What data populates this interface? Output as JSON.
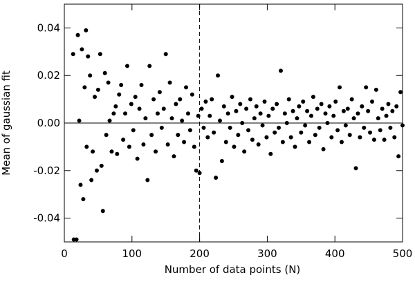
{
  "chart_data": {
    "type": "scatter",
    "x_label": "Number of data points (N)",
    "y_label": "Mean of gaussian fit",
    "xlim": [
      0,
      500
    ],
    "xticks": [
      0,
      100,
      200,
      300,
      400,
      500
    ],
    "ylim": [
      -0.05,
      0.05
    ],
    "yticks": [
      -0.04,
      -0.02,
      {
        "value": 0,
        "label": "0.00"
      },
      0.02,
      0.04
    ],
    "hline": 0,
    "vline": 200,
    "color": "#000000",
    "x": [
      13,
      14,
      18,
      20,
      22,
      24,
      26,
      28,
      30,
      32,
      33,
      35,
      38,
      40,
      42,
      45,
      48,
      50,
      53,
      55,
      57,
      60,
      62,
      65,
      67,
      70,
      73,
      76,
      78,
      81,
      84,
      87,
      90,
      93,
      96,
      99,
      102,
      105,
      108,
      111,
      114,
      117,
      120,
      123,
      126,
      129,
      132,
      135,
      138,
      141,
      144,
      147,
      150,
      153,
      156,
      159,
      162,
      165,
      168,
      171,
      174,
      177,
      180,
      183,
      186,
      189,
      192,
      195,
      198,
      200,
      203,
      206,
      209,
      212,
      215,
      218,
      221,
      224,
      227,
      230,
      233,
      236,
      239,
      242,
      245,
      248,
      251,
      254,
      257,
      260,
      263,
      266,
      269,
      272,
      275,
      278,
      281,
      284,
      287,
      290,
      293,
      296,
      299,
      302,
      305,
      308,
      311,
      314,
      317,
      320,
      323,
      326,
      329,
      332,
      335,
      338,
      341,
      344,
      347,
      350,
      353,
      356,
      359,
      362,
      365,
      368,
      371,
      374,
      377,
      380,
      383,
      386,
      389,
      392,
      395,
      398,
      401,
      404,
      407,
      410,
      413,
      416,
      419,
      422,
      425,
      428,
      431,
      434,
      437,
      440,
      443,
      446,
      449,
      452,
      455,
      458,
      461,
      464,
      467,
      470,
      473,
      476,
      479,
      482,
      485,
      488,
      491,
      494,
      497,
      500
    ],
    "y": [
      0.029,
      -0.049,
      -0.049,
      0.037,
      0.001,
      -0.026,
      0.031,
      -0.032,
      0.015,
      0.039,
      -0.01,
      0.028,
      0.02,
      -0.024,
      -0.012,
      0.011,
      -0.02,
      0.014,
      0.029,
      -0.018,
      -0.037,
      0.021,
      -0.005,
      0.017,
      0.001,
      -0.012,
      0.004,
      0.007,
      -0.013,
      0.012,
      0.016,
      -0.007,
      0.004,
      0.024,
      -0.01,
      0.008,
      -0.003,
      0.011,
      -0.015,
      0.006,
      0.016,
      -0.009,
      0.002,
      -0.024,
      0.024,
      -0.005,
      0.01,
      -0.012,
      0.004,
      0.013,
      -0.002,
      0.006,
      0.029,
      -0.009,
      0.017,
      0.002,
      -0.014,
      0.008,
      -0.005,
      0.01,
      0.001,
      -0.008,
      0.015,
      0.004,
      -0.003,
      0.012,
      -0.01,
      -0.02,
      0.003,
      -0.021,
      0.006,
      -0.002,
      0.009,
      -0.006,
      0.003,
      0.01,
      -0.004,
      -0.023,
      0.02,
      0.001,
      -0.016,
      0.007,
      -0.008,
      0.004,
      -0.002,
      0.011,
      -0.01,
      0.005,
      -0.005,
      0.008,
      0.0,
      -0.012,
      0.006,
      -0.003,
      0.01,
      -0.007,
      0.002,
      0.007,
      -0.009,
      0.004,
      -0.001,
      0.009,
      -0.006,
      0.003,
      -0.013,
      0.006,
      -0.004,
      0.008,
      -0.002,
      0.022,
      -0.008,
      0.004,
      0.0,
      0.01,
      -0.006,
      0.005,
      -0.01,
      0.002,
      0.007,
      -0.004,
      0.009,
      -0.001,
      0.005,
      -0.008,
      0.003,
      0.011,
      -0.005,
      0.006,
      -0.002,
      0.008,
      -0.011,
      0.004,
      0.0,
      0.007,
      -0.006,
      0.003,
      0.009,
      -0.003,
      0.015,
      -0.008,
      0.005,
      -0.001,
      0.006,
      -0.005,
      0.01,
      0.002,
      -0.019,
      0.004,
      -0.006,
      0.007,
      -0.002,
      0.015,
      0.005,
      -0.004,
      0.009,
      -0.007,
      0.014,
      0.002,
      -0.003,
      0.006,
      -0.007,
      0.003,
      0.008,
      -0.002,
      0.005,
      -0.006,
      0.007,
      -0.014,
      0.013,
      -0.001
    ]
  }
}
